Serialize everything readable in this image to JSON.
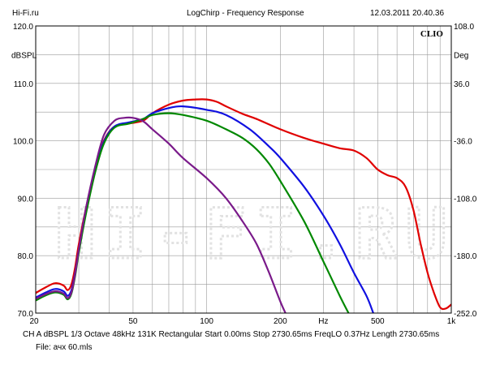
{
  "header": {
    "left": "Hi-Fi.ru",
    "center": "LogChirp - Frequency Response",
    "right": "12.03.2011 20.40.36"
  },
  "watermark": "HI-FI.RU",
  "footer": {
    "line1": "CH A   dBSPL   1/3 Octave   48kHz   131K   Rectangular   Start 0.00ms   Stop 2730.65ms   FreqLO 0.37Hz   Length 2730.65ms",
    "line2": "File: ачх 60.mls"
  },
  "chart_data": {
    "type": "line",
    "logo": "CLIO",
    "ylabel_left": "dBSPL",
    "ylabel_right": "Deg",
    "xunit": "Hz",
    "xscale": "log",
    "xlim": [
      20,
      1000
    ],
    "ylim": [
      70,
      120
    ],
    "ylim_right": [
      -252,
      108
    ],
    "grid": true,
    "y_ticks": [
      70,
      80,
      90,
      100,
      110,
      120
    ],
    "y_tick_labels": [
      "70.0",
      "80.0",
      "90.0",
      "100.0",
      "110.0",
      "120.0"
    ],
    "y_right_ticks": [
      -252,
      -180,
      -108,
      -36,
      36,
      108
    ],
    "y_right_tick_labels": [
      "-252.0",
      "-180.0",
      "-108.0",
      "-36.0",
      "36.0",
      "108.0"
    ],
    "x_tick_labels": [
      {
        "value": 20,
        "label": "20"
      },
      {
        "value": 50,
        "label": "50"
      },
      {
        "value": 100,
        "label": "100"
      },
      {
        "value": 200,
        "label": "200"
      },
      {
        "value": 500,
        "label": "500"
      },
      {
        "value": 1000,
        "label": "1k"
      }
    ],
    "series": [
      {
        "color": "#e00000",
        "points": [
          [
            20,
            73.5
          ],
          [
            22,
            74.5
          ],
          [
            24,
            75.2
          ],
          [
            26,
            74.8
          ],
          [
            27,
            74.0
          ],
          [
            28,
            75.0
          ],
          [
            29,
            78.0
          ],
          [
            30,
            82.0
          ],
          [
            32,
            88.0
          ],
          [
            35,
            95.0
          ],
          [
            38,
            100.0
          ],
          [
            42,
            102.5
          ],
          [
            48,
            103.0
          ],
          [
            55,
            103.5
          ],
          [
            60,
            104.8
          ],
          [
            70,
            106.3
          ],
          [
            80,
            107.0
          ],
          [
            90,
            107.2
          ],
          [
            100,
            107.2
          ],
          [
            110,
            106.8
          ],
          [
            120,
            106.0
          ],
          [
            140,
            104.7
          ],
          [
            160,
            103.8
          ],
          [
            200,
            102.0
          ],
          [
            250,
            100.5
          ],
          [
            300,
            99.5
          ],
          [
            350,
            98.7
          ],
          [
            400,
            98.3
          ],
          [
            450,
            97.0
          ],
          [
            500,
            95.0
          ],
          [
            550,
            94.0
          ],
          [
            600,
            93.5
          ],
          [
            650,
            92.0
          ],
          [
            700,
            88.0
          ],
          [
            750,
            82.0
          ],
          [
            800,
            77.0
          ],
          [
            850,
            73.5
          ],
          [
            900,
            71.0
          ],
          [
            950,
            70.8
          ],
          [
            1000,
            71.5
          ]
        ]
      },
      {
        "color": "#1010e0",
        "points": [
          [
            20,
            72.7
          ],
          [
            22,
            73.6
          ],
          [
            24,
            74.2
          ],
          [
            26,
            73.8
          ],
          [
            27,
            73.0
          ],
          [
            28,
            74.0
          ],
          [
            29,
            77.0
          ],
          [
            30,
            81.0
          ],
          [
            32,
            87.5
          ],
          [
            35,
            94.8
          ],
          [
            38,
            99.8
          ],
          [
            42,
            102.5
          ],
          [
            48,
            103.2
          ],
          [
            55,
            103.8
          ],
          [
            60,
            104.8
          ],
          [
            70,
            105.7
          ],
          [
            80,
            106.0
          ],
          [
            100,
            105.4
          ],
          [
            120,
            104.5
          ],
          [
            150,
            102.0
          ],
          [
            180,
            99.0
          ],
          [
            200,
            97.0
          ],
          [
            250,
            92.0
          ],
          [
            300,
            87.0
          ],
          [
            350,
            82.0
          ],
          [
            400,
            77.0
          ],
          [
            450,
            73.0
          ],
          [
            480,
            70.0
          ]
        ]
      },
      {
        "color": "#008800",
        "points": [
          [
            20,
            72.2
          ],
          [
            22,
            73.1
          ],
          [
            24,
            73.6
          ],
          [
            26,
            73.2
          ],
          [
            27,
            72.4
          ],
          [
            28,
            73.4
          ],
          [
            29,
            76.5
          ],
          [
            30,
            80.5
          ],
          [
            32,
            87.0
          ],
          [
            35,
            94.5
          ],
          [
            38,
            99.5
          ],
          [
            42,
            102.3
          ],
          [
            48,
            103.0
          ],
          [
            55,
            103.8
          ],
          [
            60,
            104.5
          ],
          [
            70,
            104.8
          ],
          [
            80,
            104.5
          ],
          [
            100,
            103.5
          ],
          [
            120,
            102.0
          ],
          [
            140,
            100.5
          ],
          [
            160,
            98.5
          ],
          [
            180,
            96.0
          ],
          [
            200,
            93.0
          ],
          [
            250,
            86.0
          ],
          [
            300,
            79.0
          ],
          [
            350,
            73.0
          ],
          [
            380,
            70.0
          ]
        ]
      },
      {
        "color": "#7a1a8a",
        "points": [
          [
            20,
            72.5
          ],
          [
            22,
            73.3
          ],
          [
            24,
            73.8
          ],
          [
            26,
            73.4
          ],
          [
            27,
            72.6
          ],
          [
            28,
            73.6
          ],
          [
            29,
            76.8
          ],
          [
            30,
            81.0
          ],
          [
            32,
            88.0
          ],
          [
            35,
            95.5
          ],
          [
            38,
            101.0
          ],
          [
            42,
            103.5
          ],
          [
            46,
            104.0
          ],
          [
            50,
            104.0
          ],
          [
            55,
            103.4
          ],
          [
            60,
            102.0
          ],
          [
            70,
            99.5
          ],
          [
            80,
            97.0
          ],
          [
            100,
            93.5
          ],
          [
            120,
            90.0
          ],
          [
            140,
            86.0
          ],
          [
            160,
            82.0
          ],
          [
            180,
            77.0
          ],
          [
            200,
            72.0
          ],
          [
            210,
            70.0
          ]
        ]
      }
    ]
  }
}
